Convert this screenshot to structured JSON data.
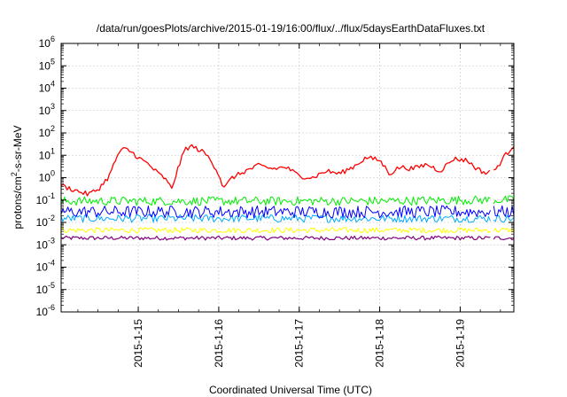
{
  "chart_data": {
    "type": "line",
    "title": "/data/run/goesPlots/archive/2015-01-19/16:00/flux/../flux/5daysEarthDataFluxes.txt",
    "xlabel": "Coordinated Universal Time (UTC)",
    "ylabel": {
      "prefix": "protons/cm",
      "sup": "2",
      "suffix": "-s-sr-MeV"
    },
    "yscale": "log",
    "ylim": [
      -6,
      6
    ],
    "y_ticks": [
      {
        "exp": -6,
        "base": "10",
        "sup": "-6"
      },
      {
        "exp": -5,
        "base": "10",
        "sup": "-5"
      },
      {
        "exp": -4,
        "base": "10",
        "sup": "-4"
      },
      {
        "exp": -3,
        "base": "10",
        "sup": "-3"
      },
      {
        "exp": -2,
        "base": "10",
        "sup": "-2"
      },
      {
        "exp": -1,
        "base": "10",
        "sup": "-1"
      },
      {
        "exp": 0,
        "base": "10",
        "sup": "0"
      },
      {
        "exp": 1,
        "base": "10",
        "sup": "1"
      },
      {
        "exp": 2,
        "base": "10",
        "sup": "2"
      },
      {
        "exp": 3,
        "base": "10",
        "sup": "3"
      },
      {
        "exp": 4,
        "base": "10",
        "sup": "4"
      },
      {
        "exp": 5,
        "base": "10",
        "sup": "5"
      },
      {
        "exp": 6,
        "base": "10",
        "sup": "6"
      }
    ],
    "xlim": [
      "2015-01-14 01:00",
      "2015-01-19 16:00"
    ],
    "x_ticks": [
      {
        "t": "2015-01-15 00:00",
        "label": "2015-1-15"
      },
      {
        "t": "2015-01-16 00:00",
        "label": "2015-1-16"
      },
      {
        "t": "2015-01-17 00:00",
        "label": "2015-1-17"
      },
      {
        "t": "2015-01-18 00:00",
        "label": "2015-1-18"
      },
      {
        "t": "2015-01-19 00:00",
        "label": "2015-1-19"
      }
    ],
    "grid": true,
    "legend": "none",
    "gaps": [
      [
        "2015-01-19 09:00",
        "2015-01-19 10:00"
      ]
    ],
    "series": [
      {
        "color": "#ff0000",
        "t": [
          "2015-01-14 01:00",
          "2015-01-14 03:00",
          "2015-01-14 06:00",
          "2015-01-14 09:00",
          "2015-01-14 12:00",
          "2015-01-14 15:00",
          "2015-01-14 16:00",
          "2015-01-14 18:00",
          "2015-01-14 20:00",
          "2015-01-14 22:00",
          "2015-01-15 00:00",
          "2015-01-15 03:00",
          "2015-01-15 06:00",
          "2015-01-15 08:00",
          "2015-01-15 09:00",
          "2015-01-15 10:00",
          "2015-01-15 12:00",
          "2015-01-15 14:00",
          "2015-01-15 16:00",
          "2015-01-15 18:00",
          "2015-01-15 20:00",
          "2015-01-15 22:00",
          "2015-01-16 00:00",
          "2015-01-16 01:00",
          "2015-01-16 02:00",
          "2015-01-16 04:00",
          "2015-01-16 08:00",
          "2015-01-16 12:00",
          "2015-01-16 16:00",
          "2015-01-16 20:00",
          "2015-01-17 00:00",
          "2015-01-17 04:00",
          "2015-01-17 08:00",
          "2015-01-17 12:00",
          "2015-01-17 16:00",
          "2015-01-17 20:00",
          "2015-01-18 00:00",
          "2015-01-18 03:00",
          "2015-01-18 06:00",
          "2015-01-18 10:00",
          "2015-01-18 14:00",
          "2015-01-18 18:00",
          "2015-01-18 22:00",
          "2015-01-19 02:00",
          "2015-01-19 05:00",
          "2015-01-19 08:00",
          "2015-01-19 09:00",
          "2015-01-19 10:00",
          "2015-01-19 13:00",
          "2015-01-19 16:00"
        ],
        "values": [
          0.45,
          0.35,
          0.25,
          0.18,
          0.3,
          1.0,
          2.0,
          12,
          20,
          14,
          8,
          4,
          1.5,
          0.9,
          0.5,
          0.35,
          3,
          20,
          25,
          18,
          12,
          5,
          1.5,
          0.5,
          0.4,
          1.0,
          2.0,
          3.5,
          2.5,
          3.0,
          1.2,
          1.0,
          2.0,
          1.5,
          3.0,
          8.0,
          6.0,
          1.5,
          3.0,
          2.5,
          4.0,
          2.0,
          7.0,
          6.0,
          2.5,
          1.5,
          2.5,
          1.8,
          8.0,
          30.0
        ]
      },
      {
        "color": "#00ee00",
        "t": [
          "2015-01-14 01:00",
          "2015-01-15 00:00",
          "2015-01-16 00:00",
          "2015-01-17 00:00",
          "2015-01-18 00:00",
          "2015-01-19 00:00",
          "2015-01-19 16:00"
        ],
        "values": [
          0.09,
          0.09,
          0.09,
          0.09,
          0.09,
          0.1,
          0.1
        ]
      },
      {
        "color": "#0000ff",
        "t": [
          "2015-01-14 01:00",
          "2015-01-15 00:00",
          "2015-01-16 00:00",
          "2015-01-17 00:00",
          "2015-01-18 00:00",
          "2015-01-19 00:00",
          "2015-01-19 16:00"
        ],
        "values": [
          0.03,
          0.03,
          0.03,
          0.03,
          0.03,
          0.03,
          0.03
        ]
      },
      {
        "color": "#00aaff",
        "t": [
          "2015-01-14 01:00",
          "2015-01-15 00:00",
          "2015-01-16 00:00",
          "2015-01-17 00:00",
          "2015-01-18 00:00",
          "2015-01-19 00:00",
          "2015-01-19 16:00"
        ],
        "values": [
          0.015,
          0.015,
          0.015,
          0.015,
          0.015,
          0.015,
          0.015
        ]
      },
      {
        "color": "#ffff00",
        "t": [
          "2015-01-14 01:00",
          "2015-01-15 00:00",
          "2015-01-16 00:00",
          "2015-01-17 00:00",
          "2015-01-18 00:00",
          "2015-01-19 00:00",
          "2015-01-19 16:00"
        ],
        "values": [
          0.0045,
          0.0045,
          0.0045,
          0.0045,
          0.0045,
          0.0045,
          0.0045
        ]
      },
      {
        "color": "#800080",
        "t": [
          "2015-01-14 01:00",
          "2015-01-15 00:00",
          "2015-01-16 00:00",
          "2015-01-17 00:00",
          "2015-01-18 00:00",
          "2015-01-19 00:00",
          "2015-01-19 16:00"
        ],
        "values": [
          0.002,
          0.002,
          0.002,
          0.002,
          0.002,
          0.002,
          0.002
        ]
      }
    ]
  }
}
